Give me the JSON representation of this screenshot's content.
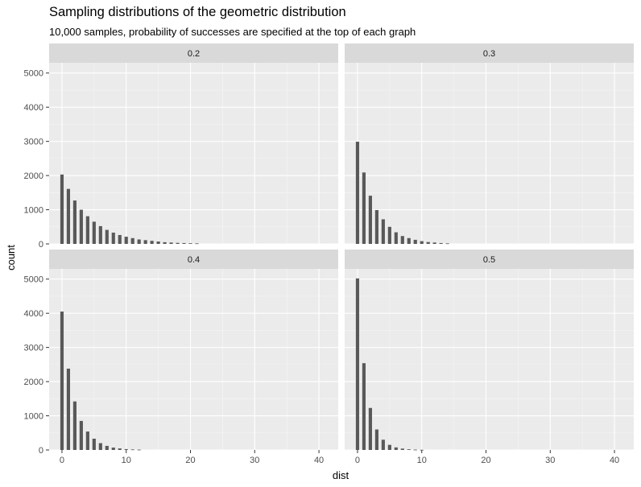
{
  "chart_data": {
    "type": "bar",
    "title": "Sampling distributions of the geometric distribution",
    "subtitle": "10,000 samples, probability of successes are specified at the top of each graph",
    "xlabel": "dist",
    "ylabel": "count",
    "xlim": [
      -2,
      43
    ],
    "ylim": [
      0,
      5300
    ],
    "x_ticks": [
      0,
      10,
      20,
      30,
      40
    ],
    "y_ticks": [
      0,
      1000,
      2000,
      3000,
      4000,
      5000
    ],
    "grid": true,
    "facets": [
      {
        "strip": "0.2",
        "x": [
          0,
          1,
          2,
          3,
          4,
          5,
          6,
          7,
          8,
          9,
          10,
          11,
          12,
          13,
          14,
          15,
          16,
          17,
          18,
          19,
          20,
          21
        ],
        "values": [
          2030,
          1610,
          1270,
          1000,
          810,
          650,
          520,
          410,
          330,
          260,
          210,
          170,
          130,
          110,
          90,
          70,
          50,
          40,
          30,
          25,
          20,
          15
        ]
      },
      {
        "strip": "0.3",
        "x": [
          0,
          1,
          2,
          3,
          4,
          5,
          6,
          7,
          8,
          9,
          10,
          11,
          12,
          13,
          14
        ],
        "values": [
          2990,
          2090,
          1410,
          990,
          720,
          500,
          340,
          230,
          170,
          120,
          80,
          55,
          40,
          25,
          15
        ]
      },
      {
        "strip": "0.4",
        "x": [
          0,
          1,
          2,
          3,
          4,
          5,
          6,
          7,
          8,
          9,
          10,
          11,
          12
        ],
        "values": [
          4050,
          2380,
          1420,
          850,
          540,
          330,
          200,
          120,
          70,
          45,
          25,
          15,
          10
        ]
      },
      {
        "strip": "0.5",
        "x": [
          0,
          1,
          2,
          3,
          4,
          5,
          6,
          7,
          8,
          9,
          10
        ],
        "values": [
          5020,
          2540,
          1230,
          600,
          300,
          150,
          75,
          40,
          20,
          10,
          5
        ]
      }
    ]
  }
}
